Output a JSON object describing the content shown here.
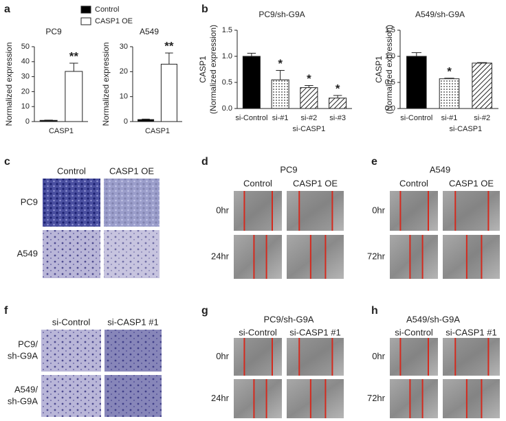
{
  "chart_data": [
    {
      "type": "bar",
      "panel": "a",
      "title": "PC9",
      "ylabel": "Normalized expression",
      "categories": [
        "CASP1"
      ],
      "series": [
        {
          "name": "Control",
          "color": "#000000",
          "values": [
            0.8
          ],
          "errors": [
            0.2
          ]
        },
        {
          "name": "CASP1 OE",
          "color": "#ffffff",
          "values": [
            33.5
          ],
          "errors": [
            5.5
          ],
          "significance": [
            "**"
          ]
        }
      ],
      "ylim": [
        0,
        50
      ],
      "yticks": [
        0,
        10,
        20,
        30,
        40,
        50
      ]
    },
    {
      "type": "bar",
      "title": "A549",
      "ylabel": "Normalized expression",
      "categories": [
        "CASP1"
      ],
      "series": [
        {
          "color": "#000000",
          "values": [
            0.8
          ],
          "errors": [
            0.2
          ]
        },
        {
          "color": "#ffffff",
          "values": [
            23
          ],
          "errors": [
            4.5
          ],
          "significance": [
            "**"
          ]
        }
      ],
      "ylim": [
        0,
        30
      ],
      "yticks": [
        0,
        10,
        20,
        30
      ]
    },
    {
      "type": "bar",
      "panel": "b",
      "title": "PC9/sh-G9A",
      "ylabel": [
        "CASP1",
        "(Normalized expression)"
      ],
      "categories": [
        "si-Control",
        "si-#1",
        "si-#2",
        "si-#3"
      ],
      "group_label": "si-CASP1",
      "series": [
        {
          "color": "#000000",
          "fills": [
            "solid",
            "dots",
            "hatch",
            "hatch"
          ],
          "values": [
            1.0,
            0.55,
            0.4,
            0.2
          ],
          "errors": [
            0.06,
            0.18,
            0.04,
            0.05
          ],
          "significance": [
            null,
            "*",
            "*",
            "*"
          ]
        }
      ],
      "ylim": [
        0,
        1.5
      ],
      "yticks": [
        {
          "value": 0,
          "label": "0.0"
        },
        0.5,
        {
          "value": 1,
          "label": "1.0"
        },
        1.5
      ]
    },
    {
      "type": "bar",
      "title": "A549/sh-G9A",
      "ylabel": [
        "CASP1",
        "(Normalized expression)"
      ],
      "categories": [
        "si-Control",
        "si-#1",
        "si-#2"
      ],
      "group_label": "si-CASP1",
      "series": [
        {
          "color": "#000000",
          "fills": [
            "solid",
            "dots",
            "hatch"
          ],
          "values": [
            1.0,
            0.57,
            0.87
          ],
          "errors": [
            0.07,
            0.01,
            0.01
          ],
          "significance": [
            null,
            "*",
            null
          ]
        }
      ],
      "ylim": [
        0,
        1.5
      ],
      "yticks": [
        {
          "value": 0,
          "label": "0.0"
        },
        0.5,
        {
          "value": 1,
          "label": "1.0"
        },
        1.5
      ]
    }
  ],
  "image_panels": [
    {
      "label": "c",
      "kind": "invasion",
      "columns": [
        "Control",
        "CASP1 OE"
      ],
      "rows": [
        "PC9",
        "A549"
      ]
    },
    {
      "label": "d",
      "kind": "wound",
      "title": "PC9",
      "columns": [
        "Control",
        "CASP1 OE"
      ],
      "rows": [
        "0hr",
        "24hr"
      ]
    },
    {
      "label": "e",
      "kind": "wound",
      "title": "A549",
      "columns": [
        "Control",
        "CASP1 OE"
      ],
      "rows": [
        "0hr",
        "72hr"
      ]
    },
    {
      "label": "f",
      "kind": "invasion",
      "columns": [
        "si-Control",
        "si-CASP1 #1"
      ],
      "rows": [
        [
          "PC9/",
          "sh-G9A"
        ],
        [
          "A549/",
          "sh-G9A"
        ]
      ]
    },
    {
      "label": "g",
      "kind": "wound",
      "title": "PC9/sh-G9A",
      "columns": [
        "si-Control",
        "si-CASP1 #1"
      ],
      "rows": [
        "0hr",
        "24hr"
      ]
    },
    {
      "label": "h",
      "kind": "wound",
      "title": "A549/sh-G9A",
      "columns": [
        "si-Control",
        "si-CASP1 #1"
      ],
      "rows": [
        "0hr",
        "72hr"
      ]
    }
  ]
}
